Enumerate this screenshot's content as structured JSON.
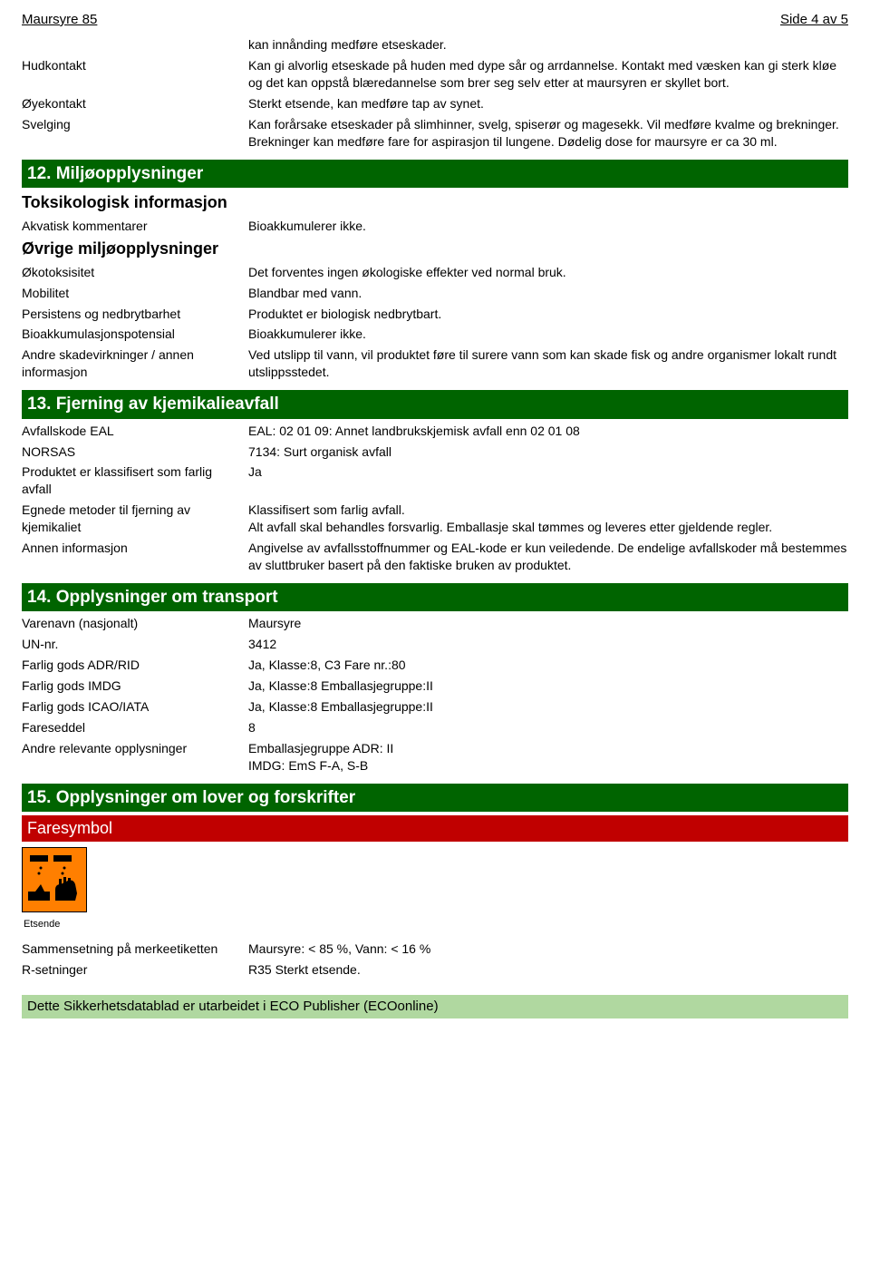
{
  "header": {
    "title": "Maursyre 85",
    "page_indicator": "Side 4 av 5"
  },
  "section11_rows": [
    {
      "label": "",
      "value": "kan innånding medføre etseskader."
    },
    {
      "label": "Hudkontakt",
      "value": "Kan gi alvorlig etseskade på huden med dype sår og arrdannelse. Kontakt med væsken kan gi sterk kløe og det kan oppstå blæredannelse som brer seg selv etter at maursyren er skyllet bort."
    },
    {
      "label": "Øyekontakt",
      "value": "Sterkt etsende, kan medføre tap av synet."
    },
    {
      "label": "Svelging",
      "value": "Kan forårsake etseskader på slimhinner, svelg, spiserør og magesekk. Vil medføre kvalme og brekninger. Brekninger kan medføre fare for aspirasjon til lungene. Dødelig dose for maursyre er ca 30 ml."
    }
  ],
  "section12": {
    "title": "12. Miljøopplysninger",
    "sub1": "Toksikologisk informasjon",
    "rows1": [
      {
        "label": "Akvatisk kommentarer",
        "value": "Bioakkumulerer ikke."
      }
    ],
    "sub2": "Øvrige miljøopplysninger",
    "rows2": [
      {
        "label": "Økotoksisitet",
        "value": "Det forventes ingen økologiske effekter ved normal bruk."
      },
      {
        "label": "Mobilitet",
        "value": "Blandbar med vann."
      },
      {
        "label": "Persistens og nedbrytbarhet",
        "value": "Produktet er biologisk nedbrytbart."
      },
      {
        "label": "Bioakkumulasjonspotensial",
        "value": "Bioakkumulerer ikke."
      },
      {
        "label": "Andre skadevirkninger / annen informasjon",
        "value": "Ved utslipp til vann, vil produktet føre til surere vann som kan skade fisk og andre organismer lokalt rundt utslippsstedet."
      }
    ]
  },
  "section13": {
    "title": "13. Fjerning av kjemikalieavfall",
    "rows": [
      {
        "label": "Avfallskode EAL",
        "value": "EAL: 02 01 09: Annet landbrukskjemisk avfall enn 02 01 08"
      },
      {
        "label": "NORSAS",
        "value": "7134: Surt organisk avfall"
      },
      {
        "label": "Produktet er klassifisert som farlig avfall",
        "value": "Ja"
      },
      {
        "label": "Egnede metoder til fjerning av kjemikaliet",
        "value": "Klassifisert som farlig avfall.\nAlt avfall skal behandles forsvarlig. Emballasje skal tømmes og leveres etter gjeldende regler."
      },
      {
        "label": "Annen informasjon",
        "value": "Angivelse av avfallsstoffnummer og EAL-kode er kun veiledende. De endelige avfallskoder må bestemmes av sluttbruker basert på den faktiske bruken av produktet."
      }
    ]
  },
  "section14": {
    "title": "14. Opplysninger om transport",
    "rows": [
      {
        "label": "Varenavn (nasjonalt)",
        "value": "Maursyre"
      },
      {
        "label": "UN-nr.",
        "value": "3412"
      },
      {
        "label": "Farlig gods ADR/RID",
        "value": "Ja, Klasse:8, C3 Fare nr.:80"
      },
      {
        "label": "Farlig gods IMDG",
        "value": "Ja, Klasse:8 Emballasjegruppe:II"
      },
      {
        "label": "Farlig gods ICAO/IATA",
        "value": "Ja, Klasse:8 Emballasjegruppe:II"
      },
      {
        "label": "Fareseddel",
        "value": "8"
      },
      {
        "label": "Andre relevante opplysninger",
        "value": "Emballasjegruppe ADR: II\nIMDG: EmS F-A, S-B"
      }
    ]
  },
  "section15": {
    "title": "15. Opplysninger om lover og forskrifter",
    "faresymbol_label": "Faresymbol",
    "hazard_caption": "Etsende",
    "rows": [
      {
        "label": "Sammensetning på merkeetiketten",
        "value": "Maursyre: < 85 %, Vann: < 16 %"
      },
      {
        "label": "R-setninger",
        "value": "R35 Sterkt etsende."
      }
    ]
  },
  "footer": "Dette Sikkerhetsdatablad er utarbeidet i ECO Publisher (ECOonline)",
  "colors": {
    "section_bg": "#006400",
    "faresymbol_bg": "#c00000",
    "footer_bg": "#b0d8a0",
    "hazard_orange": "#ff7f00"
  }
}
